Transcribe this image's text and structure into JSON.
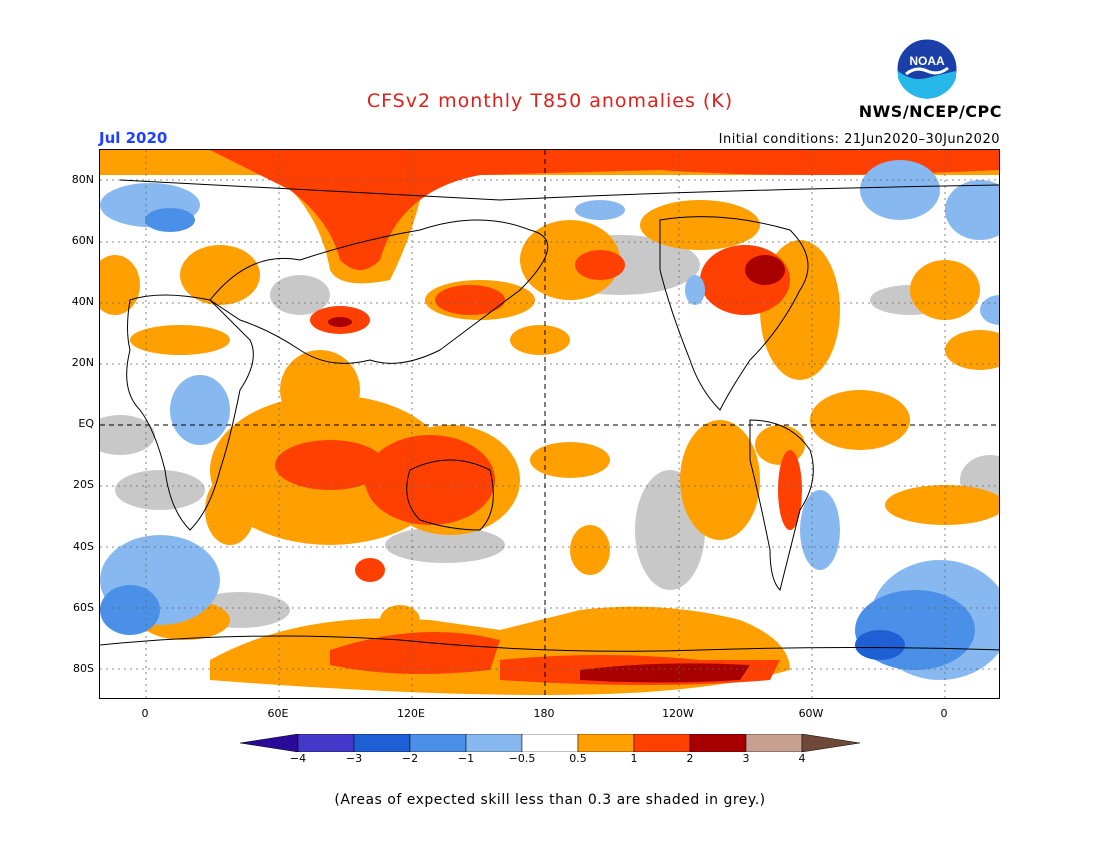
{
  "header": {
    "title": "CFSv2 monthly T850 anomalies (K)",
    "month": "Jul 2020",
    "initial_conditions": "Initial conditions: 21Jun2020–30Jun2020",
    "agency": "NWS/NCEP/CPC",
    "logo_text": "NOAA"
  },
  "map": {
    "lat_labels": [
      "80N",
      "60N",
      "40N",
      "20N",
      "EQ",
      "20S",
      "40S",
      "60S",
      "80S"
    ],
    "lon_labels": [
      "0",
      "60E",
      "120E",
      "180",
      "120W",
      "60W",
      "0"
    ]
  },
  "legend": {
    "labels": [
      "−4",
      "−3",
      "−2",
      "−1",
      "−0.5",
      "0.5",
      "1",
      "2",
      "3",
      "4"
    ],
    "colors": {
      "lt_neg4": "#2a0a99",
      "neg4_neg3": "#4338c8",
      "neg3_neg2": "#1f5fd6",
      "neg2_neg1": "#4a90e8",
      "neg1_neg05": "#87b8f0",
      "neutral": "#ffffff",
      "pos05_1": "#ff9f00",
      "pos1_2": "#ff4000",
      "pos2_3": "#a80000",
      "pos3_4": "#c8a090",
      "gt_pos4": "#70483a"
    },
    "low_skill_color": "#c8c8c8"
  },
  "footnote": "(Areas of expected skill less than 0.3 are shaded in grey.)"
}
